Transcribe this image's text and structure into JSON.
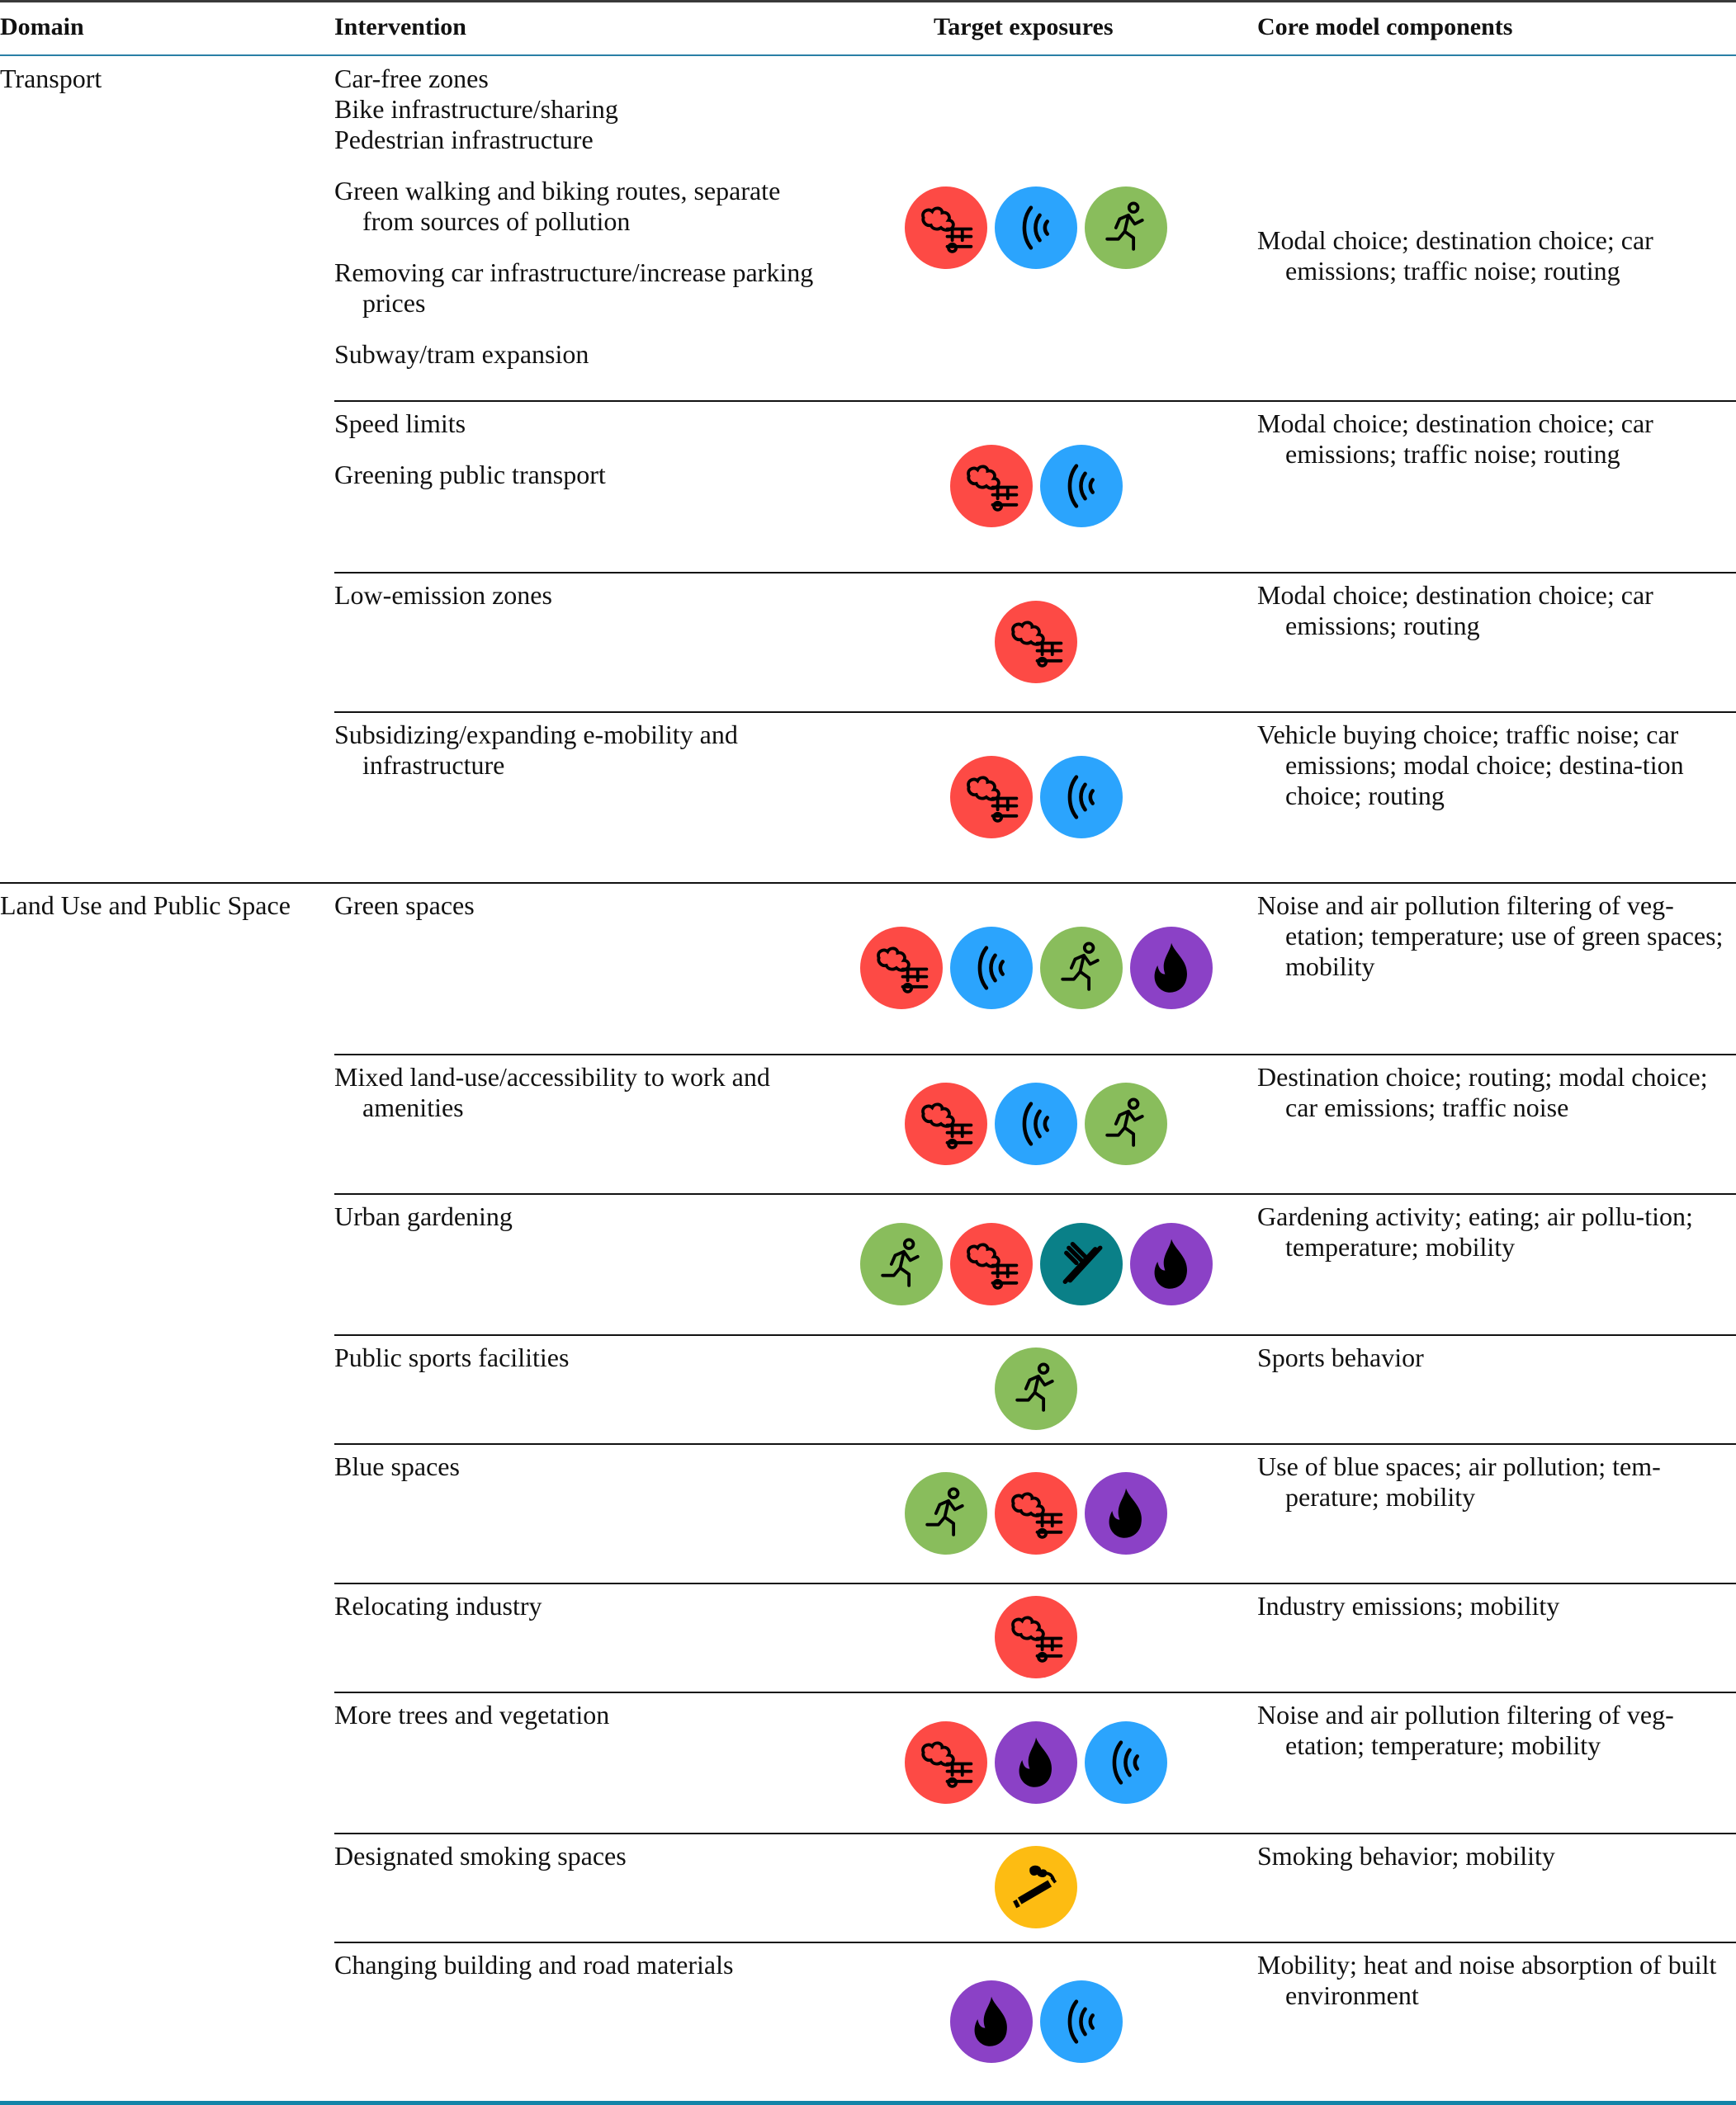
{
  "header": {
    "domain": "Domain",
    "intervention": "Intervention",
    "target": "Target exposures",
    "core": "Core model components"
  },
  "exposure_colors": {
    "air-pollution": "#fd4a45",
    "noise": "#2ba4fd",
    "physical-activity": "#89bd5c",
    "heat": "#8b41c6",
    "diet": "#0a8088",
    "smoking": "#fdbc12"
  },
  "rows": [
    {
      "domain": "Transport",
      "groups": [
        [
          "Car-free zones",
          "Bike infrastructure/sharing",
          "Pedestrian infrastructure"
        ],
        [
          "Green walking and biking routes, separate from sources of pollution"
        ],
        [
          "Removing car infrastructure/increase parking prices"
        ],
        [
          "Subway/tram expansion"
        ]
      ],
      "icons": [
        "air-pollution",
        "noise",
        "physical-activity"
      ],
      "core": "Modal choice; destination choice; car emissions; traffic noise; routing"
    },
    {
      "groups": [
        [
          "Speed limits"
        ],
        [
          "Greening public transport"
        ]
      ],
      "icons": [
        "air-pollution",
        "noise"
      ],
      "core": "Modal choice; destination choice; car emissions; traffic noise; routing"
    },
    {
      "groups": [
        [
          "Low-emission zones"
        ]
      ],
      "icons": [
        "air-pollution"
      ],
      "core": "Modal choice; destination choice; car emissions; routing"
    },
    {
      "groups": [
        [
          "Subsidizing/expanding e-mobility and infrastructure"
        ]
      ],
      "icons": [
        "air-pollution",
        "noise"
      ],
      "core": "Vehicle buying choice; traffic noise; car emissions; modal choice; destina-tion choice; routing"
    },
    {
      "domain": "Land Use and Public Space",
      "groups": [
        [
          "Green spaces"
        ]
      ],
      "icons": [
        "air-pollution",
        "noise",
        "physical-activity",
        "heat"
      ],
      "core": "Noise and air pollution filtering of veg-etation; temperature; use of green spaces; mobility"
    },
    {
      "groups": [
        [
          "Mixed land-use/accessibility to work and amenities"
        ]
      ],
      "icons": [
        "air-pollution",
        "noise",
        "physical-activity"
      ],
      "core": "Destination choice; routing; modal choice; car emissions; traffic noise"
    },
    {
      "groups": [
        [
          "Urban gardening"
        ]
      ],
      "icons": [
        "physical-activity",
        "air-pollution",
        "diet",
        "heat"
      ],
      "core": "Gardening activity; eating; air pollu-tion; temperature; mobility"
    },
    {
      "groups": [
        [
          "Public sports facilities"
        ]
      ],
      "icons": [
        "physical-activity"
      ],
      "core": "Sports behavior"
    },
    {
      "groups": [
        [
          "Blue spaces"
        ]
      ],
      "icons": [
        "physical-activity",
        "air-pollution",
        "heat"
      ],
      "core": "Use of blue spaces; air pollution; tem-perature; mobility"
    },
    {
      "groups": [
        [
          "Relocating industry"
        ]
      ],
      "icons": [
        "air-pollution"
      ],
      "core": "Industry emissions; mobility"
    },
    {
      "groups": [
        [
          "More trees and vegetation"
        ]
      ],
      "icons": [
        "air-pollution",
        "heat",
        "noise"
      ],
      "core": "Noise and air pollution filtering of veg-etation; temperature; mobility"
    },
    {
      "groups": [
        [
          "Designated smoking spaces"
        ]
      ],
      "icons": [
        "smoking"
      ],
      "core": "Smoking behavior; mobility"
    },
    {
      "groups": [
        [
          "Changing building and road materials"
        ]
      ],
      "icons": [
        "heat",
        "noise"
      ],
      "core": "Mobility; heat and noise absorption of built environment"
    }
  ]
}
